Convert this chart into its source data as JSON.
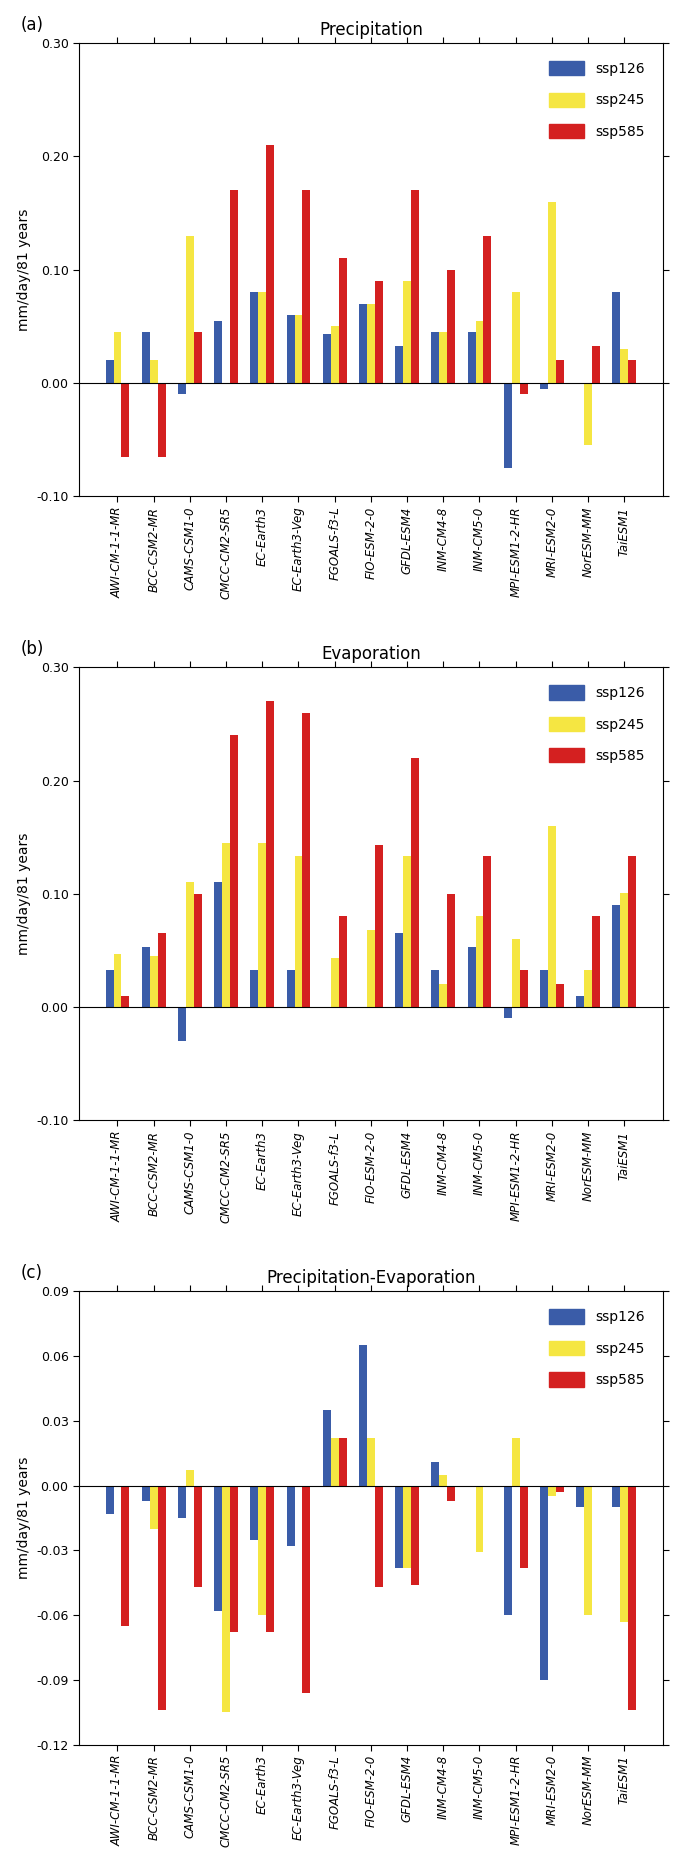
{
  "categories": [
    "AWI-CM-1-1-MR",
    "BCC-CSM2-MR",
    "CAMS-CSM1-0",
    "CMCC-CM2-SR5",
    "EC-Earth3",
    "EC-Earth3-Veg",
    "FGOALS-f3-L",
    "FIO-ESM-2-0",
    "GFDL-ESM4",
    "INM-CM4-8",
    "INM-CM5-0",
    "MPI-ESM1-2-HR",
    "MRI-ESM2-0",
    "NorESM-MM",
    "TaiESM1"
  ],
  "precip": {
    "ssp126": [
      0.02,
      0.045,
      -0.01,
      0.055,
      0.08,
      0.06,
      0.043,
      0.07,
      0.033,
      0.045,
      0.045,
      -0.075,
      -0.005,
      0.0,
      0.08
    ],
    "ssp245": [
      0.045,
      0.02,
      0.13,
      0.0,
      0.08,
      0.06,
      0.05,
      0.07,
      0.09,
      0.045,
      0.055,
      0.08,
      0.16,
      -0.055,
      0.03
    ],
    "ssp585": [
      -0.065,
      -0.065,
      0.045,
      0.17,
      0.21,
      0.17,
      0.11,
      0.09,
      0.17,
      0.1,
      0.13,
      -0.01,
      0.02,
      0.033,
      0.02
    ]
  },
  "evap": {
    "ssp126": [
      0.033,
      0.053,
      -0.03,
      0.11,
      0.033,
      0.033,
      0.0,
      0.0,
      0.065,
      0.033,
      0.053,
      -0.01,
      0.033,
      0.01,
      0.09
    ],
    "ssp245": [
      0.047,
      0.045,
      0.11,
      0.145,
      0.145,
      0.133,
      0.043,
      0.068,
      0.133,
      0.02,
      0.08,
      0.06,
      0.16,
      0.033,
      0.101
    ],
    "ssp585": [
      0.01,
      0.065,
      0.1,
      0.24,
      0.27,
      0.26,
      0.08,
      0.143,
      0.22,
      0.1,
      0.133,
      0.033,
      0.02,
      0.08,
      0.133
    ]
  },
  "pe": {
    "ssp126": [
      -0.013,
      -0.007,
      -0.015,
      -0.058,
      -0.025,
      -0.028,
      0.035,
      0.065,
      -0.038,
      0.011,
      0.0,
      -0.06,
      -0.09,
      -0.01,
      -0.01
    ],
    "ssp245": [
      0.0,
      -0.02,
      0.007,
      -0.105,
      -0.06,
      0.0,
      0.022,
      0.022,
      -0.038,
      0.005,
      -0.031,
      0.022,
      -0.005,
      -0.06,
      -0.063
    ],
    "ssp585": [
      -0.065,
      -0.104,
      -0.047,
      -0.068,
      -0.068,
      -0.096,
      0.022,
      -0.047,
      -0.046,
      -0.007,
      0.0,
      -0.038,
      -0.003,
      0.0,
      -0.104
    ]
  },
  "colors": {
    "ssp126": "#3a5ca8",
    "ssp245": "#f5e642",
    "ssp585": "#d42020"
  },
  "ylim_ab": [
    -0.1,
    0.3
  ],
  "ylim_c": [
    -0.12,
    0.09
  ],
  "yticks_ab": [
    -0.1,
    0.0,
    0.1,
    0.2,
    0.3
  ],
  "yticks_c": [
    -0.12,
    -0.09,
    -0.06,
    -0.03,
    0.0,
    0.03,
    0.06,
    0.09
  ],
  "ylabel": "mm/day/81 years",
  "titles": [
    "Precipitation",
    "Evaporation",
    "Precipitation-Evaporation"
  ],
  "panel_labels": [
    "(a)",
    "(b)",
    "(c)"
  ],
  "legend_labels": [
    "ssp126",
    "ssp245",
    "ssp585"
  ],
  "background_color": "#ffffff",
  "bar_width": 0.22
}
